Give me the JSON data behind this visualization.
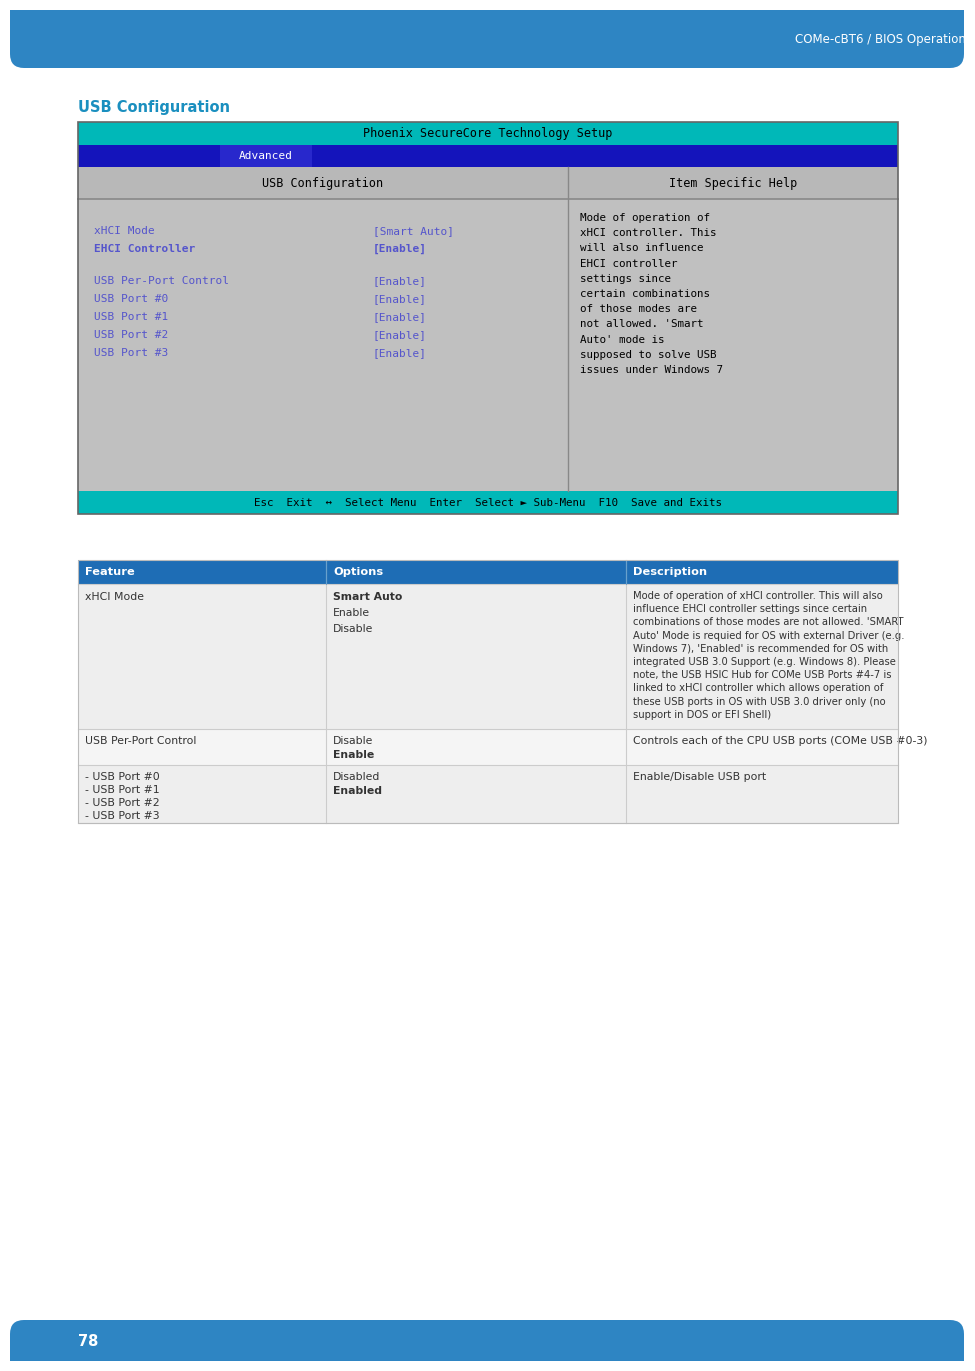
{
  "page_title": "COMe-cBT6 / BIOS Operation",
  "section_title": "USB Configuration",
  "header_bg": "#2e85c3",
  "bios_title_bar_color": "#00b8b8",
  "bios_title_text": "Phoenix SecureCore Technology Setup",
  "bios_nav_bar_color": "#1414bb",
  "bios_nav_text": "Advanced",
  "bios_content_bg": "#c0c0c0",
  "bios_left_panel_title": "USB Configuration",
  "bios_right_panel_title": "Item Specific Help",
  "bios_items": [
    {
      "label": "xHCI Mode",
      "value": "[Smart Auto]",
      "bold": false
    },
    {
      "label": "EHCI Controller",
      "value": "[Enable]",
      "bold": true
    },
    {
      "label": "USB Per-Port Control",
      "value": "[Enable]",
      "bold": false
    },
    {
      "label": "USB Port #0",
      "value": "[Enable]",
      "bold": false
    },
    {
      "label": "USB Port #1",
      "value": "[Enable]",
      "bold": false
    },
    {
      "label": "USB Port #2",
      "value": "[Enable]",
      "bold": false
    },
    {
      "label": "USB Port #3",
      "value": "[Enable]",
      "bold": false
    }
  ],
  "bios_help_lines": [
    "Mode of operation of",
    "xHCI controller. This",
    "will also influence",
    "EHCI controller",
    "settings since",
    "certain combinations",
    "of those modes are",
    "not allowed. 'Smart",
    "Auto' mode is",
    "supposed to solve USB",
    "issues under Windows 7"
  ],
  "bios_footer_color": "#00b8b8",
  "bios_footer_text": "Esc  Exit  ↔  Select Menu  Enter  Select ► Sub-Menu  F10  Save and Exits",
  "table_header_bg": "#1e6db5",
  "table_cols": [
    "Feature",
    "Options",
    "Description"
  ],
  "desc_row1_lines": [
    "Mode of operation of xHCI controller. This will also",
    "influence EHCI controller settings since certain",
    "combinations of those modes are not allowed. 'SMART",
    "Auto' Mode is requied for OS with external Driver (e.g.",
    "Windows 7), 'Enabled' is recommended for OS with",
    "integrated USB 3.0 Support (e.g. Windows 8). Please",
    "note, the USB HSIC Hub for COMe USB Ports #4-7 is",
    "linked to xHCI controller which allows operation of",
    "these USB ports in OS with USB 3.0 driver only (no",
    "support in DOS or EFI Shell)"
  ],
  "footer_bg": "#2e85c3",
  "footer_page": "78"
}
